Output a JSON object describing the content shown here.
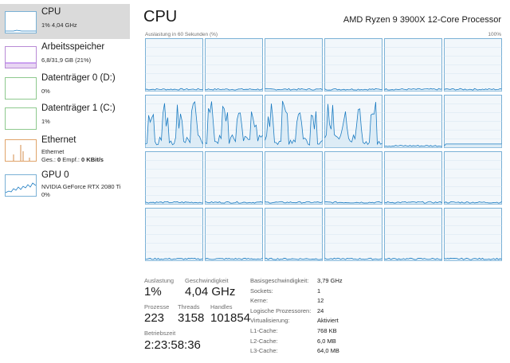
{
  "sidebar": {
    "items": [
      {
        "name": "CPU",
        "sub": "1%  4,04 GHz",
        "color": "#1c7cc2",
        "active": true
      },
      {
        "name": "Arbeitsspeicher",
        "sub": "6,8/31,9 GB (21%)",
        "color": "#8a2be2"
      },
      {
        "name": "Datenträger 0 (D:)",
        "sub": "0%",
        "color": "#4fa64f"
      },
      {
        "name": "Datenträger 1 (C:)",
        "sub": "1%",
        "color": "#4fa64f"
      },
      {
        "name": "Ethernet",
        "sub": "Ethernet",
        "sub2_prefix": "Ges.: ",
        "sub2_send": "0",
        "sub2_mid": " Empf.: ",
        "sub2_recv": "0 KBit/s",
        "color": "#c8701e"
      },
      {
        "name": "GPU 0",
        "sub": "NVIDIA GeForce RTX 2080 Ti",
        "sub2": "0%",
        "color": "#1c7cc2"
      }
    ]
  },
  "main": {
    "title": "CPU",
    "processor": "AMD Ryzen 9 3900X 12-Core Processor",
    "chart_caption": "Auslastung in 60 Sekunden (%)",
    "chart_max": "100%",
    "grid": {
      "cols": 6,
      "rows": 4,
      "active_cells": [
        6,
        7,
        8,
        9,
        10,
        11
      ]
    },
    "stats": {
      "auslastung_label": "Auslastung",
      "auslastung": "1%",
      "geschwindigkeit_label": "Geschwindigkeit",
      "geschwindigkeit": "4,04 GHz",
      "prozesse_label": "Prozesse",
      "prozesse": "223",
      "threads_label": "Threads",
      "threads": "3158",
      "handles_label": "Handles",
      "handles": "101854",
      "betriebszeit_label": "Betriebszeit",
      "betriebszeit": "2:23:58:36"
    },
    "details": [
      {
        "label": "Basisgeschwindigkeit:",
        "value": "3,79 GHz"
      },
      {
        "label": "Sockets:",
        "value": "1"
      },
      {
        "label": "Kerne:",
        "value": "12"
      },
      {
        "label": "Logische Prozessoren:",
        "value": "24"
      },
      {
        "label": "Virtualisierung:",
        "value": "Aktiviert"
      },
      {
        "label": "L1-Cache:",
        "value": "768 KB"
      },
      {
        "label": "L2-Cache:",
        "value": "6,0 MB"
      },
      {
        "label": "L3-Cache:",
        "value": "64,0 MB"
      }
    ]
  }
}
